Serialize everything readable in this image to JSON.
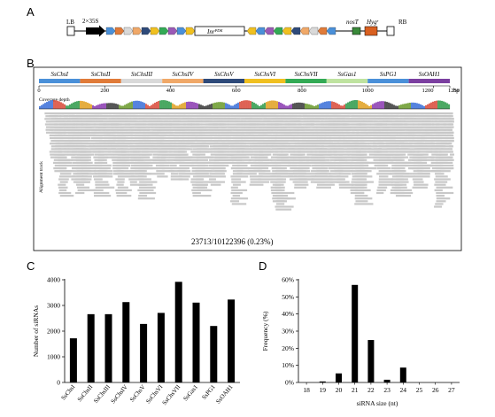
{
  "panels": {
    "a": "A",
    "b": "B",
    "c": "C",
    "d": "D"
  },
  "construct": {
    "lb": "LB",
    "rb": "RB",
    "promoter": "2×35S",
    "inr": "Inr",
    "inr_sup": "PDK",
    "nos": "nosT",
    "hyg": "Hyg",
    "hyg_sup": "r",
    "segment_colors": [
      "#4a90d9",
      "#e07b39",
      "#d9d9d9",
      "#f0a868",
      "#2e4a7a",
      "#f0c020",
      "#33aa55",
      "#9b59b6",
      "#4a90d9",
      "#f0c020"
    ]
  },
  "coverage": {
    "genes": [
      "SsChsI",
      "SsChsII",
      "SsChsIII",
      "SsChsIV",
      "SsChsV",
      "SsChsVI",
      "SsChsVII",
      "SsGas1",
      "SsPG1",
      "SsOAH1"
    ],
    "gene_colors": [
      "#4a90d9",
      "#e07b39",
      "#d9d9d9",
      "#f0a868",
      "#2e4a7a",
      "#f0c020",
      "#33aa55",
      "#bfe3a0",
      "#4a90d9",
      "#7b3fa0"
    ],
    "ruler_ticks": [
      "0",
      "200",
      "400",
      "600",
      "800",
      "1000",
      "1200",
      "1250",
      "bp"
    ],
    "coverage_label": "Coverage depth",
    "alignment_label": "Alignment track",
    "summary": "23713/10122396 (0.23%)"
  },
  "chart_data": [
    {
      "type": "bar",
      "ylabel": "Number of siRNAs",
      "xlabel": "",
      "categories": [
        "SsChsI",
        "SsChsII",
        "SsChsIII",
        "SsChsIV",
        "SsChsV",
        "SsChsVI",
        "SsChsVII",
        "SsGas1",
        "SsPG1",
        "SsOAH1"
      ],
      "values": [
        1720,
        2660,
        2660,
        3130,
        2280,
        2710,
        3920,
        3110,
        2200,
        3230
      ],
      "ylim": [
        0,
        4000
      ],
      "yticks": [
        "0",
        "1000",
        "2000",
        "3000",
        "4000"
      ],
      "color": "#000000"
    },
    {
      "type": "bar",
      "ylabel": "Frequency (%)",
      "xlabel": "siRNA size (nt)",
      "categories": [
        "18",
        "19",
        "20",
        "21",
        "22",
        "23",
        "24",
        "25",
        "26",
        "27"
      ],
      "values": [
        0.0,
        0.6,
        5.3,
        57.0,
        24.8,
        1.6,
        8.7,
        0.0,
        0.0,
        0.0
      ],
      "ylim": [
        0,
        60
      ],
      "yticks": [
        "0%",
        "10%",
        "20%",
        "30%",
        "40%",
        "50%",
        "60%"
      ],
      "color": "#000000"
    }
  ]
}
